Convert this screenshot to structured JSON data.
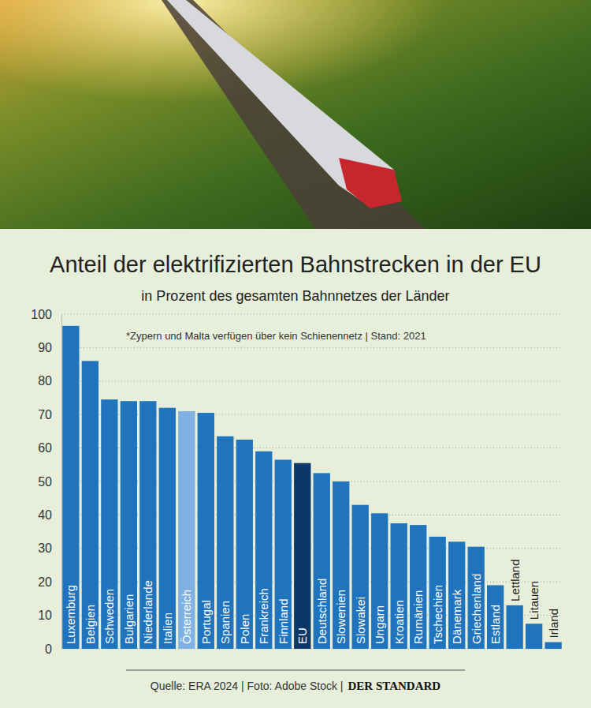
{
  "chart_data": {
    "type": "bar",
    "title": "Anteil der elektrifizierten Bahnstrecken in der EU",
    "subtitle": "in Prozent des gesamten Bahnnetzes der Länder",
    "note": "*Zypern und Malta verfügen über kein Schienennetz | Stand: 2021",
    "source": "Quelle: ERA 2024 | Foto: Adobe Stock |",
    "publisher": "DER STANDARD",
    "categories": [
      "Luxemburg",
      "Belgien",
      "Schweden",
      "Bulgarien",
      "Niederlande",
      "Italien",
      "Österreich",
      "Portugal",
      "Spanien",
      "Polen",
      "Frankreich",
      "Finnland",
      "EU",
      "Deutschland",
      "Slowenien",
      "Slowakei",
      "Ungarn",
      "Kroatien",
      "Rumänien",
      "Tschechien",
      "Dänemark",
      "Griechenland",
      "Estland",
      "Lettland",
      "Litauen",
      "Irland"
    ],
    "values": [
      96.5,
      86,
      74.5,
      74,
      74,
      72,
      71,
      70.5,
      63.5,
      62.5,
      59,
      56.5,
      55.5,
      52.5,
      50,
      43,
      40.5,
      37.5,
      37,
      33.5,
      32,
      30.5,
      19,
      13,
      7.5,
      2
    ],
    "colors": [
      "#1f74bd",
      "#1f74bd",
      "#1f74bd",
      "#1f74bd",
      "#1f74bd",
      "#1f74bd",
      "#7fb2e3",
      "#1f74bd",
      "#1f74bd",
      "#1f74bd",
      "#1f74bd",
      "#1f74bd",
      "#0c3766",
      "#1f74bd",
      "#1f74bd",
      "#1f74bd",
      "#1f74bd",
      "#1f74bd",
      "#1f74bd",
      "#1f74bd",
      "#1f74bd",
      "#1f74bd",
      "#1f74bd",
      "#1f74bd",
      "#1f74bd",
      "#1f74bd"
    ],
    "ylim": [
      0,
      100
    ],
    "yticks": [
      0,
      10,
      20,
      30,
      40,
      50,
      60,
      70,
      80,
      90,
      100
    ],
    "grid": true
  }
}
